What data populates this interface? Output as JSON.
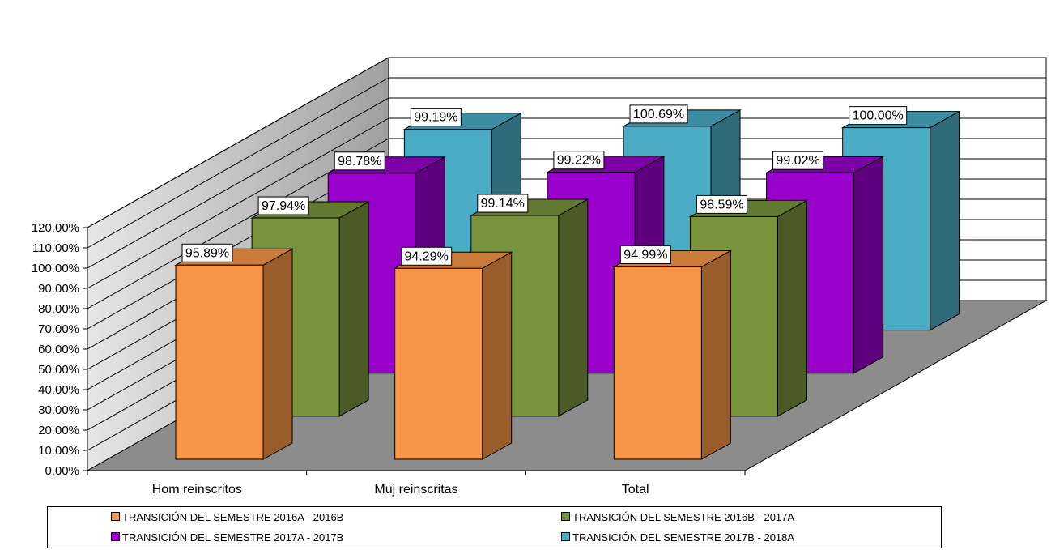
{
  "chart_data": {
    "type": "bar",
    "categories": [
      "Hom reinscritos",
      "Muj reinscritas",
      "Total"
    ],
    "series": [
      {
        "name": "TRANSICIÓN DEL SEMESTRE 2016A - 2016B",
        "values": [
          95.89,
          94.29,
          94.99
        ],
        "labels": [
          "95.89%",
          "94.29%",
          "94.99%"
        ],
        "color": "#F79646"
      },
      {
        "name": "TRANSICIÓN DEL SEMESTRE 2016B - 2017A",
        "values": [
          97.94,
          99.14,
          98.59
        ],
        "labels": [
          "97.94%",
          "99.14%",
          "98.59%"
        ],
        "color": "#77933C"
      },
      {
        "name": "TRANSICIÓN DEL SEMESTRE 2017A - 2017B",
        "values": [
          98.78,
          99.22,
          99.02
        ],
        "labels": [
          "98.78%",
          "99.22%",
          "99.02%"
        ],
        "color": "#9900CC"
      },
      {
        "name": "TRANSICIÓN DEL SEMESTRE 2017B - 2018A",
        "values": [
          99.19,
          100.69,
          100.0
        ],
        "labels": [
          "99.19%",
          "100.69%",
          "100.00%"
        ],
        "color": "#4BACC6"
      }
    ],
    "y_ticks": [
      "0.00%",
      "10.00%",
      "20.00%",
      "30.00%",
      "40.00%",
      "50.00%",
      "60.00%",
      "70.00%",
      "80.00%",
      "90.00%",
      "100.00%",
      "110.00%",
      "120.00%"
    ],
    "ylim": [
      0,
      120
    ],
    "legend_position": "bottom",
    "style": "3d-clustered-column",
    "grid": true
  }
}
